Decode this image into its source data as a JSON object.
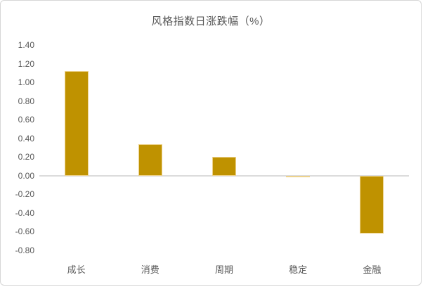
{
  "chart_data": {
    "type": "bar",
    "title": "风格指数日涨跌幅（%）",
    "categories": [
      "成长",
      "消费",
      "周期",
      "稳定",
      "金融"
    ],
    "values": [
      1.12,
      0.34,
      0.2,
      -0.02,
      -0.62
    ],
    "ylim": [
      -0.8,
      1.4
    ],
    "ytick_step": 0.2,
    "ytick_labels": [
      "1.40",
      "1.20",
      "1.00",
      "0.80",
      "0.60",
      "0.40",
      "0.20",
      "0.00",
      "-0.20",
      "-0.40",
      "-0.60",
      "-0.80"
    ],
    "grid": false,
    "legend": null,
    "bar_color": "#BF9200",
    "bar_edge_color": "#EDD28C",
    "zero_line_color": "#DCDCDC",
    "text_color": "#595959",
    "background_color": "#FFFFFF",
    "card_border_color": "#D6D6D6"
  }
}
